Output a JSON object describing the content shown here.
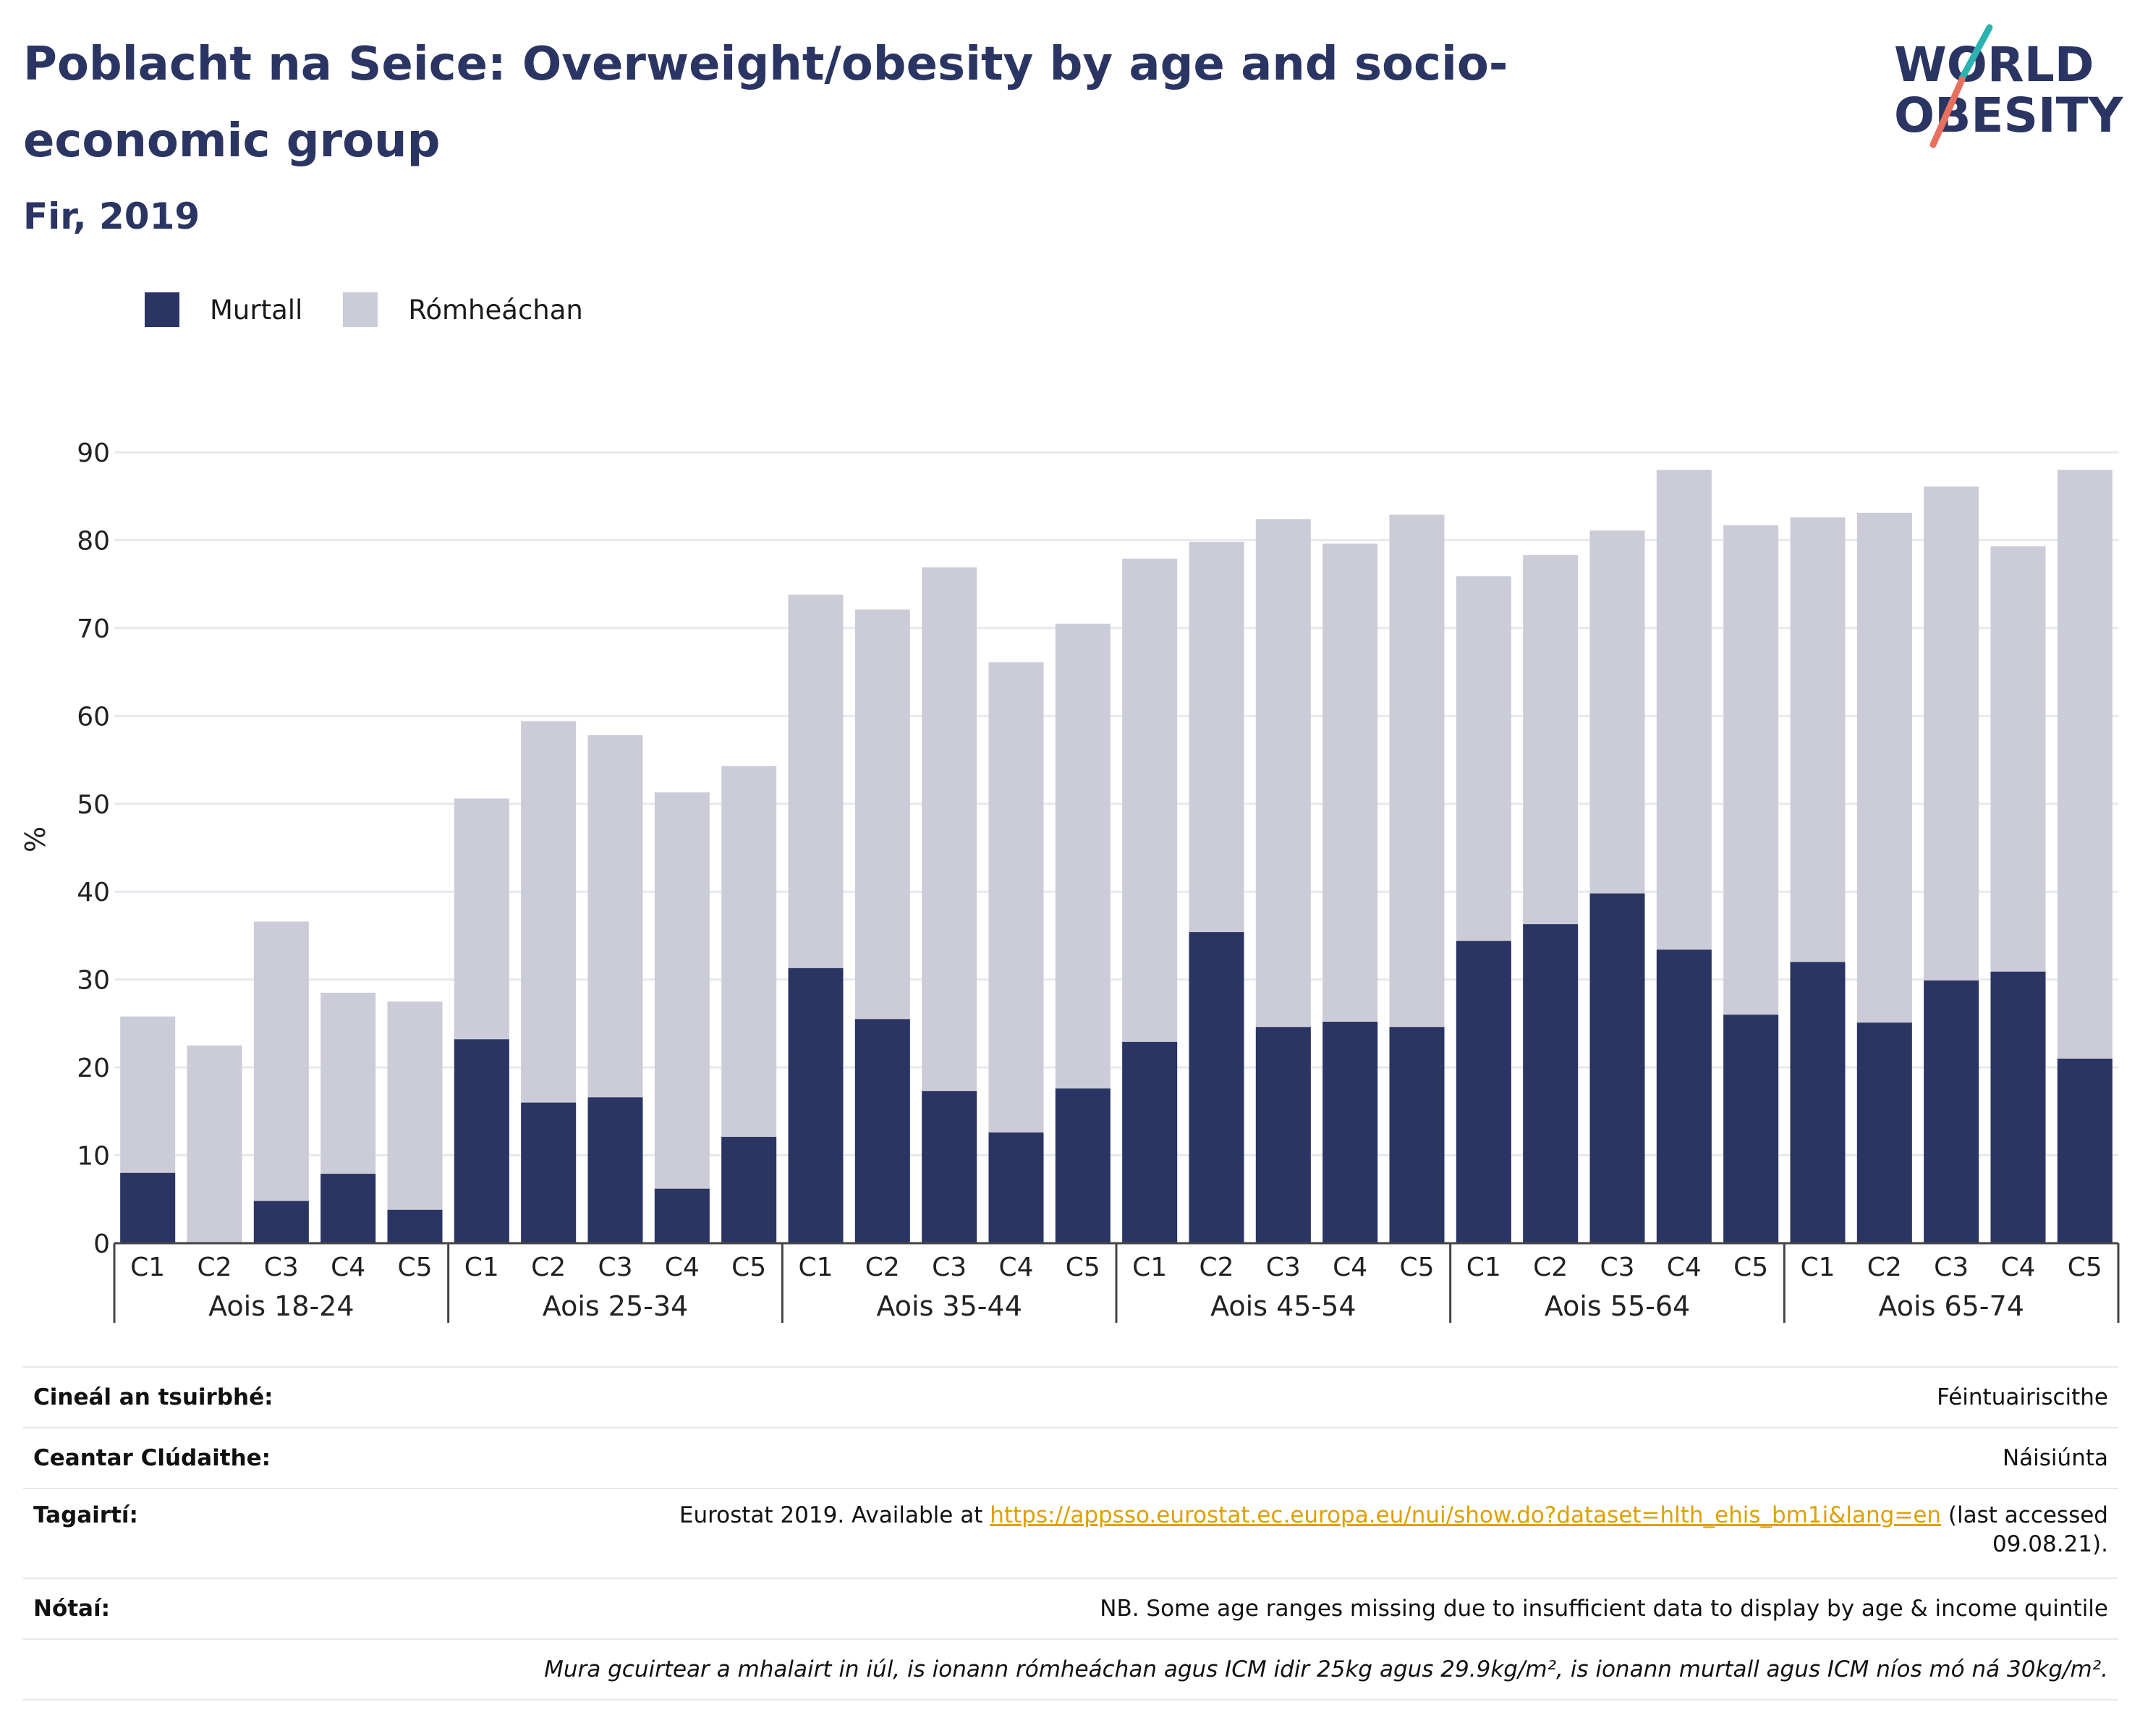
{
  "header": {
    "title": "Poblacht na Seice: Overweight/obesity by age and socio-economic group",
    "subtitle": "Fir, 2019",
    "logo_text": [
      "WORLD",
      "OBESITY"
    ]
  },
  "legend": [
    {
      "label": "Murtall",
      "color": "#2b3563"
    },
    {
      "label": "Rómheáchan",
      "color": "#cbccd8"
    }
  ],
  "colors": {
    "obese": "#2b3563",
    "overweight": "#cbccd8",
    "grid": "#e7e9ef",
    "axis": "#333333",
    "logo_accent_teal": "#2ab3b1",
    "logo_accent_coral": "#e8705e"
  },
  "chart_data": {
    "type": "bar",
    "stacked": true,
    "ylabel": "%",
    "ylim": [
      0,
      90
    ],
    "yticks": [
      0,
      10,
      20,
      30,
      40,
      50,
      60,
      70,
      80,
      90
    ],
    "grid": true,
    "legend_position": "top-left",
    "groups": [
      {
        "label": "Aois 18-24",
        "categories": [
          "C1",
          "C2",
          "C3",
          "C4",
          "C5"
        ],
        "obese": [
          8.0,
          0,
          4.8,
          7.9,
          3.8
        ],
        "total": [
          25.8,
          22.5,
          36.6,
          28.5,
          27.5
        ]
      },
      {
        "label": "Aois 25-34",
        "categories": [
          "C1",
          "C2",
          "C3",
          "C4",
          "C5"
        ],
        "obese": [
          23.2,
          16.0,
          16.6,
          6.2,
          12.1
        ],
        "total": [
          50.6,
          59.4,
          57.8,
          51.3,
          54.3
        ]
      },
      {
        "label": "Aois 35-44",
        "categories": [
          "C1",
          "C2",
          "C3",
          "C4",
          "C5"
        ],
        "obese": [
          31.3,
          25.5,
          17.3,
          12.6,
          17.6
        ],
        "total": [
          73.8,
          72.1,
          76.9,
          66.1,
          70.5
        ]
      },
      {
        "label": "Aois 45-54",
        "categories": [
          "C1",
          "C2",
          "C3",
          "C4",
          "C5"
        ],
        "obese": [
          22.9,
          35.4,
          24.6,
          25.2,
          24.6
        ],
        "total": [
          77.9,
          79.8,
          82.4,
          79.6,
          82.9
        ]
      },
      {
        "label": "Aois 55-64",
        "categories": [
          "C1",
          "C2",
          "C3",
          "C4",
          "C5"
        ],
        "obese": [
          34.4,
          36.3,
          39.8,
          33.4,
          26.0
        ],
        "total": [
          75.9,
          78.3,
          81.1,
          88.0,
          81.7
        ]
      },
      {
        "label": "Aois 65-74",
        "categories": [
          "C1",
          "C2",
          "C3",
          "C4",
          "C5"
        ],
        "obese": [
          32.0,
          25.1,
          29.9,
          30.9,
          21.0
        ],
        "total": [
          82.6,
          83.1,
          86.1,
          79.3,
          88.0
        ]
      }
    ]
  },
  "info": {
    "survey_type": {
      "label": "Cineál an tsuirbhé:",
      "value": "Féintuairiscithe"
    },
    "coverage": {
      "label": "Ceantar Clúdaithe:",
      "value": "Náisiúnta"
    },
    "references": {
      "label": "Tagairtí:",
      "prefix": "Eurostat 2019. Available at ",
      "link": "https://appsso.eurostat.ec.europa.eu/nui/show.do?dataset=hlth_ehis_bm1i&lang=en",
      "suffix": " (last accessed",
      "suffix2": "09.08.21)."
    },
    "notes": {
      "label": "Nótaí:",
      "value": "NB. Some age ranges missing due to insufficient data to display by age & income quintile"
    },
    "definition": "Mura gcuirtear a mhalairt in iúl, is ionann rómheáchan agus ICM idir 25kg agus 29.9kg/m², is ionann murtall agus ICM níos mó ná 30kg/m²."
  }
}
